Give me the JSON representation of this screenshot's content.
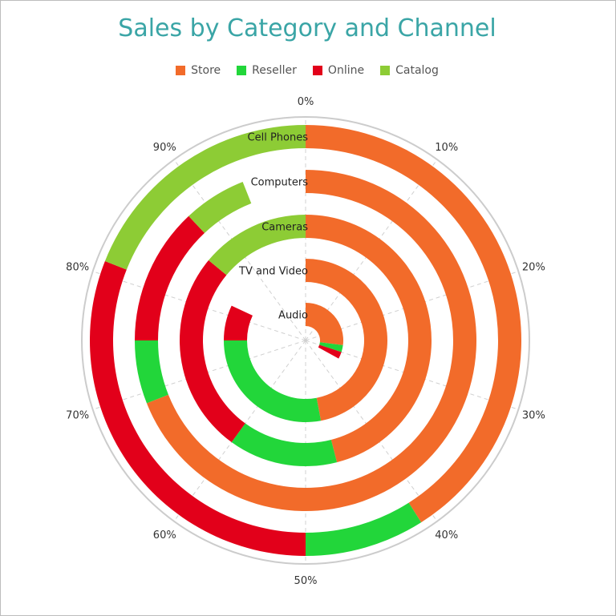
{
  "chart_data": {
    "type": "polar-stacked-bar",
    "title": "Sales by Category and Channel",
    "legend_position": "top",
    "categories": [
      "Audio",
      "TV and Video",
      "Cameras",
      "Computers",
      "Cell Phones"
    ],
    "series": [
      {
        "name": "Store",
        "color": "#f26b2a",
        "values": [
          0.27,
          0.47,
          0.46,
          0.69,
          0.41
        ]
      },
      {
        "name": "Reseller",
        "color": "#22d63a",
        "values": [
          0.03,
          0.28,
          0.14,
          0.06,
          0.09
        ]
      },
      {
        "name": "Online",
        "color": "#e2001a",
        "values": [
          0.03,
          0.07,
          0.26,
          0.13,
          0.31
        ]
      },
      {
        "name": "Catalog",
        "color": "#8dcc35",
        "values": [
          0.0,
          0.0,
          0.14,
          0.06,
          0.19
        ]
      }
    ],
    "angular_ticks": [
      "0%",
      "10%",
      "20%",
      "30%",
      "40%",
      "50%",
      "60%",
      "70%",
      "80%",
      "90%"
    ],
    "grid": true
  }
}
